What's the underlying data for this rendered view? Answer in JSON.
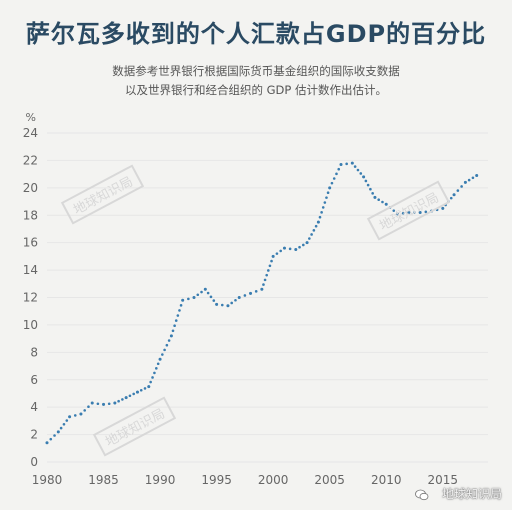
{
  "title": "萨尔瓦多收到的个人汇款占GDP的百分比",
  "subtitle_lines": [
    "数据参考世界银行根据国际货币基金组织的国际收支数据",
    "以及世界银行和经合组织的 GDP 估计数作出估计。"
  ],
  "watermark": {
    "stamp_text": "地球知识局",
    "credit_text": "地球知识局",
    "icon": "wechat-icon"
  },
  "colors": {
    "series": "#3a7db0",
    "title": "#2a4a63",
    "grid": "#e6e6e6"
  },
  "chart_data": {
    "type": "line",
    "style": "dotted",
    "title": "萨尔瓦多收到的个人汇款占GDP的百分比",
    "ylabel": "%",
    "xlabel": "",
    "xlim": [
      1980,
      2019
    ],
    "ylim": [
      0,
      24
    ],
    "x_ticks": [
      1980,
      1985,
      1990,
      1995,
      2000,
      2005,
      2010,
      2015
    ],
    "y_ticks": [
      0,
      2,
      4,
      6,
      8,
      10,
      12,
      14,
      16,
      18,
      20,
      22,
      24
    ],
    "grid": true,
    "x": [
      1980,
      1981,
      1982,
      1983,
      1984,
      1985,
      1986,
      1987,
      1988,
      1989,
      1990,
      1991,
      1992,
      1993,
      1994,
      1995,
      1996,
      1997,
      1998,
      1999,
      2000,
      2001,
      2002,
      2003,
      2004,
      2005,
      2006,
      2007,
      2008,
      2009,
      2010,
      2011,
      2012,
      2013,
      2014,
      2015,
      2016,
      2017,
      2018
    ],
    "y": [
      1.4,
      2.2,
      3.3,
      3.5,
      4.3,
      4.2,
      4.3,
      4.7,
      5.1,
      5.5,
      7.5,
      9.2,
      11.8,
      12.0,
      12.6,
      11.5,
      11.4,
      12.0,
      12.3,
      12.6,
      15.0,
      15.6,
      15.5,
      16.0,
      17.5,
      20.0,
      21.7,
      21.8,
      20.8,
      19.3,
      18.8,
      18.1,
      18.2,
      18.2,
      18.3,
      18.5,
      19.5,
      20.4,
      20.9
    ]
  }
}
